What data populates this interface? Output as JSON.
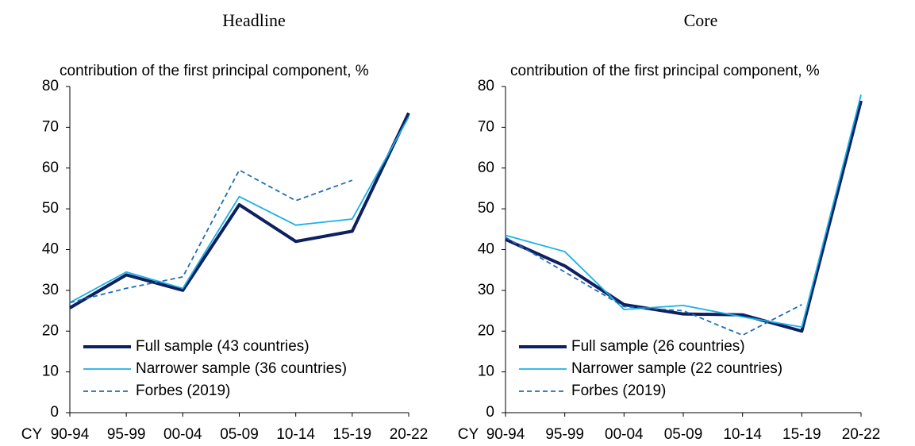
{
  "chart_data": [
    {
      "type": "line",
      "title": "Headline",
      "y_label": "contribution of the first principal component, %",
      "x_label": "CY",
      "categories": [
        "90-94",
        "95-99",
        "00-04",
        "05-09",
        "10-14",
        "15-19",
        "20-22"
      ],
      "ylim": [
        0,
        80
      ],
      "yticks": [
        0,
        10,
        20,
        30,
        40,
        50,
        60,
        70,
        80
      ],
      "legend": "lower-left",
      "series": [
        {
          "name": "Full sample (43 countries)",
          "color": "#0d2060",
          "line_width": 4,
          "line_style": "solid",
          "values": [
            25.7,
            33.8,
            30,
            51,
            42,
            44.5,
            73.5
          ]
        },
        {
          "name": "Narrower sample (36 countries)",
          "color": "#1ab0e8",
          "line_width": 1.8,
          "line_style": "solid",
          "values": [
            27,
            34.5,
            30.5,
            53,
            46,
            47.5,
            72.5
          ]
        },
        {
          "name": "Forbes (2019)",
          "color": "#1f6fb5",
          "line_width": 1.8,
          "line_style": "dashed",
          "values": [
            27,
            30.5,
            33.3,
            59.5,
            52,
            57,
            null
          ]
        }
      ]
    },
    {
      "type": "line",
      "title": "Core",
      "y_label": "contribution of the first principal component, %",
      "x_label": "CY",
      "categories": [
        "90-94",
        "95-99",
        "00-04",
        "05-09",
        "10-14",
        "15-19",
        "20-22"
      ],
      "ylim": [
        0,
        80
      ],
      "yticks": [
        0,
        10,
        20,
        30,
        40,
        50,
        60,
        70,
        80
      ],
      "legend": "lower-left",
      "series": [
        {
          "name": "Full sample (26 countries)",
          "color": "#0d2060",
          "line_width": 4,
          "line_style": "solid",
          "values": [
            42.5,
            36,
            26.5,
            24.2,
            24,
            20,
            76.5
          ]
        },
        {
          "name": "Narrower sample (22 countries)",
          "color": "#1ab0e8",
          "line_width": 1.8,
          "line_style": "solid",
          "values": [
            43.5,
            39.5,
            25.3,
            26.3,
            23.5,
            21,
            78
          ]
        },
        {
          "name": "Forbes (2019)",
          "color": "#1f6fb5",
          "line_width": 1.8,
          "line_style": "dashed",
          "values": [
            43,
            34.5,
            26,
            25,
            19,
            26.5,
            null
          ]
        }
      ]
    }
  ]
}
